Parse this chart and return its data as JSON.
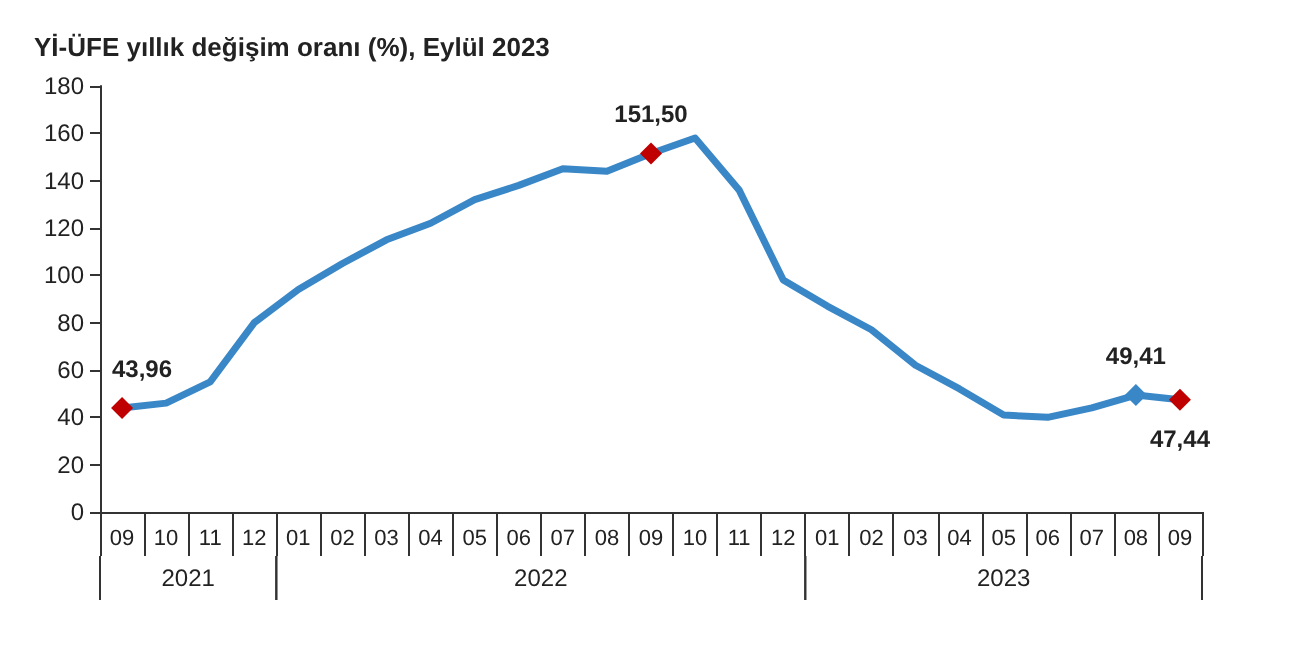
{
  "chart_data": {
    "type": "line",
    "title": "Yİ-ÜFE yıllık değişim oranı (%), Eylül 2023",
    "categories": [
      "09",
      "10",
      "11",
      "12",
      "01",
      "02",
      "03",
      "04",
      "05",
      "06",
      "07",
      "08",
      "09",
      "10",
      "11",
      "12",
      "01",
      "02",
      "03",
      "04",
      "05",
      "06",
      "07",
      "08",
      "09"
    ],
    "series": [
      {
        "color": "#3a87c7",
        "values": [
          43.96,
          46,
          55,
          80,
          94,
          105,
          115,
          122,
          132,
          138,
          145,
          144,
          151.5,
          158,
          136,
          98,
          87,
          77,
          62,
          52,
          41,
          40,
          44,
          49.41,
          47.44
        ],
        "colors": [
          "#c00000",
          "#3a87c7",
          "#3a87c7",
          "#3a87c7",
          "#3a87c7",
          "#3a87c7",
          "#3a87c7",
          "#3a87c7",
          "#3a87c7",
          "#3a87c7",
          "#3a87c7",
          "#3a87c7",
          "#c00000",
          "#3a87c7",
          "#3a87c7",
          "#3a87c7",
          "#3a87c7",
          "#3a87c7",
          "#3a87c7",
          "#3a87c7",
          "#3a87c7",
          "#3a87c7",
          "#3a87c7",
          "#3a87c7",
          "#c00000"
        ],
        "value_labels": [
          "43,96",
          null,
          null,
          null,
          null,
          null,
          null,
          null,
          null,
          null,
          null,
          null,
          "151,50",
          null,
          null,
          null,
          null,
          null,
          null,
          null,
          null,
          null,
          null,
          "49,41",
          "47,44"
        ]
      }
    ],
    "annotations": [
      "2021",
      "2022",
      "2023"
    ],
    "ylim": [
      0,
      180
    ],
    "yticks": [
      0,
      20,
      40,
      60,
      80,
      100,
      120,
      140,
      160,
      180
    ],
    "grid": false,
    "line_style": "solid"
  }
}
